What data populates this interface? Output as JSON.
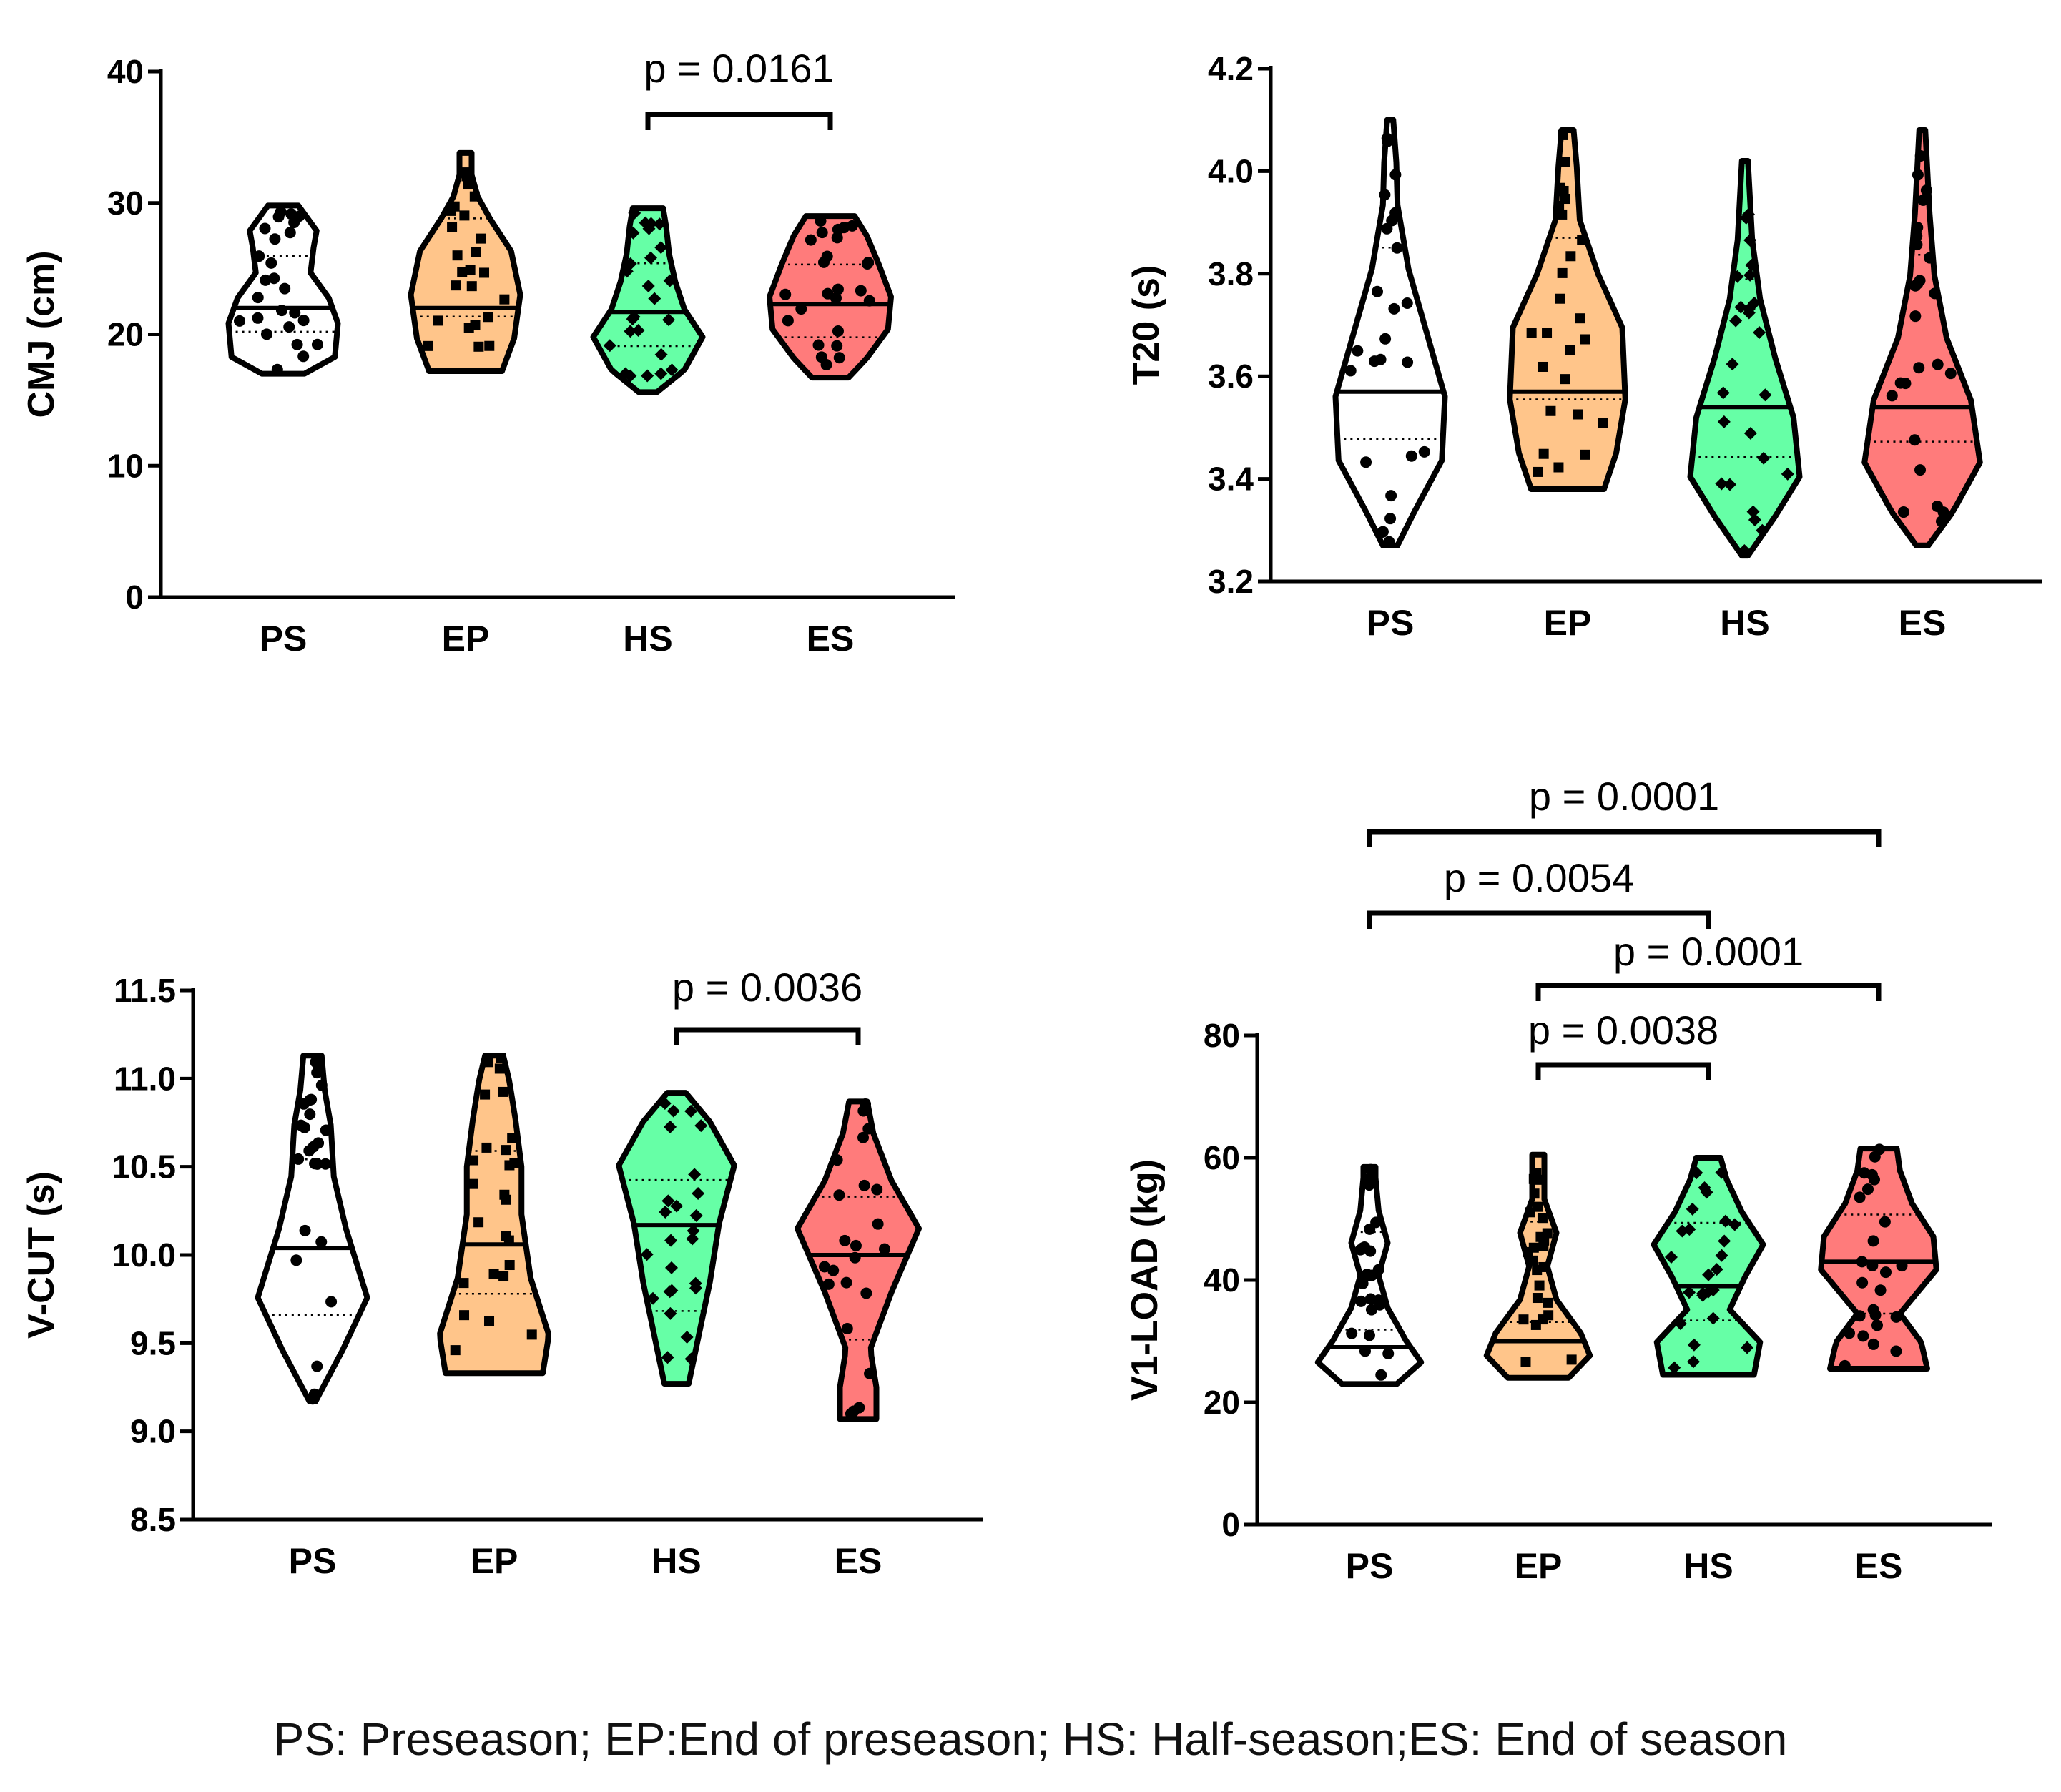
{
  "chart_data": [
    {
      "type": "violin",
      "ylabel": "CMJ (cm)",
      "ylim": [
        0,
        40
      ],
      "yticks": [
        "0",
        "10",
        "20",
        "30",
        "40"
      ],
      "categories": [
        "PS",
        "EP",
        "HS",
        "ES"
      ],
      "colors": [
        "#ffffff",
        "#ffc58a",
        "#66ffa6",
        "#ff7b7b"
      ],
      "markers": [
        "circle",
        "square",
        "diamond",
        "circle"
      ],
      "medians": [
        22.0,
        22.0,
        21.7,
        22.3
      ],
      "ranges": [
        [
          17.0,
          29.8
        ],
        [
          17.2,
          33.8
        ],
        [
          15.6,
          29.6
        ],
        [
          16.7,
          29.0
        ]
      ],
      "comparisons": [
        {
          "from": "HS",
          "to": "ES",
          "label": "p = 0.0161"
        }
      ]
    },
    {
      "type": "violin",
      "ylabel": "T20 (s)",
      "ylim": [
        3.2,
        4.2
      ],
      "yticks": [
        "3.2",
        "3.4",
        "3.6",
        "3.8",
        "4.0",
        "4.2"
      ],
      "categories": [
        "PS",
        "EP",
        "HS",
        "ES"
      ],
      "colors": [
        "#ffffff",
        "#ffc58a",
        "#66ffa6",
        "#ff7b7b"
      ],
      "markers": [
        "circle",
        "square",
        "diamond",
        "circle"
      ],
      "medians": [
        3.57,
        3.57,
        3.54,
        3.54
      ],
      "ranges": [
        [
          3.27,
          4.1
        ],
        [
          3.38,
          4.08
        ],
        [
          3.25,
          4.02
        ],
        [
          3.27,
          4.08
        ]
      ],
      "comparisons": []
    },
    {
      "type": "violin",
      "ylabel": "V-CUT (s)",
      "ylim": [
        8.5,
        11.5
      ],
      "yticks": [
        "8.5",
        "9.0",
        "9.5",
        "10.0",
        "10.5",
        "11.0",
        "11.5"
      ],
      "categories": [
        "PS",
        "EP",
        "HS",
        "ES"
      ],
      "colors": [
        "#ffffff",
        "#ffc58a",
        "#66ffa6",
        "#ff7b7b"
      ],
      "markers": [
        "circle",
        "square",
        "diamond",
        "circle"
      ],
      "medians": [
        10.04,
        10.06,
        10.17,
        10.0
      ],
      "ranges": [
        [
          9.17,
          11.13
        ],
        [
          9.33,
          11.13
        ],
        [
          9.27,
          10.92
        ],
        [
          9.07,
          10.87
        ]
      ],
      "comparisons": [
        {
          "from": "HS",
          "to": "ES",
          "label": "p = 0.0036"
        }
      ]
    },
    {
      "type": "violin",
      "ylabel": "V1-LOAD (kg)",
      "ylim": [
        0,
        80
      ],
      "yticks": [
        "0",
        "20",
        "40",
        "60",
        "80"
      ],
      "categories": [
        "PS",
        "EP",
        "HS",
        "ES"
      ],
      "colors": [
        "#ffffff",
        "#ffc58a",
        "#66ffa6",
        "#ff7b7b"
      ],
      "markers": [
        "circle",
        "square",
        "diamond",
        "circle"
      ],
      "medians": [
        29,
        30,
        39,
        43
      ],
      "ranges": [
        [
          23,
          58.5
        ],
        [
          24,
          60.5
        ],
        [
          24.5,
          60
        ],
        [
          25.5,
          61.5
        ]
      ],
      "comparisons": [
        {
          "from": "PS",
          "to": "ES",
          "label": "p = 0.0001"
        },
        {
          "from": "PS",
          "to": "HS",
          "label": "p = 0.0054"
        },
        {
          "from": "EP",
          "to": "ES",
          "label": "p = 0.0001"
        },
        {
          "from": "EP",
          "to": "HS",
          "label": "p = 0.0038"
        }
      ]
    }
  ],
  "caption": "PS: Preseason; EP:End of preseason; HS: Half-season;ES: End of season"
}
